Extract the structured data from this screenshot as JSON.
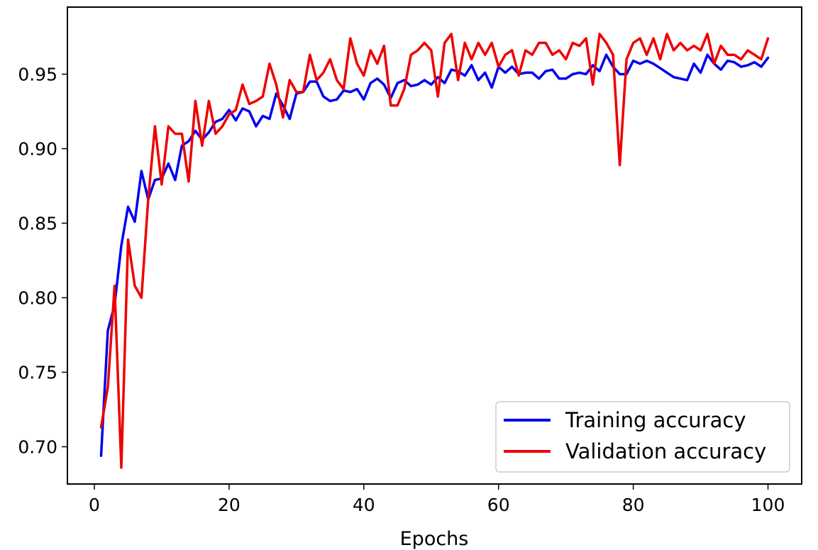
{
  "chart_data": {
    "type": "line",
    "title": "",
    "xlabel": "Epochs",
    "ylabel": "",
    "xlim": [
      -4,
      105
    ],
    "ylim": [
      0.675,
      0.995
    ],
    "xticks": [
      0,
      20,
      40,
      60,
      80,
      100
    ],
    "xtick_labels": [
      "0",
      "20",
      "40",
      "60",
      "80",
      "100"
    ],
    "yticks": [
      0.7,
      0.75,
      0.8,
      0.85,
      0.9,
      0.95
    ],
    "ytick_labels": [
      "0.70",
      "0.75",
      "0.80",
      "0.85",
      "0.90",
      "0.95"
    ],
    "grid": false,
    "legend": "lower-right",
    "x": [
      1,
      2,
      3,
      4,
      5,
      6,
      7,
      8,
      9,
      10,
      11,
      12,
      13,
      14,
      15,
      16,
      17,
      18,
      19,
      20,
      21,
      22,
      23,
      24,
      25,
      26,
      27,
      28,
      29,
      30,
      31,
      32,
      33,
      34,
      35,
      36,
      37,
      38,
      39,
      40,
      41,
      42,
      43,
      44,
      45,
      46,
      47,
      48,
      49,
      50,
      51,
      52,
      53,
      54,
      55,
      56,
      57,
      58,
      59,
      60,
      61,
      62,
      63,
      64,
      65,
      66,
      67,
      68,
      69,
      70,
      71,
      72,
      73,
      74,
      75,
      76,
      77,
      78,
      79,
      80,
      81,
      82,
      83,
      84,
      85,
      86,
      87,
      88,
      89,
      90,
      91,
      92,
      93,
      94,
      95,
      96,
      97,
      98,
      99,
      100
    ],
    "series": [
      {
        "name": "Training accuracy",
        "color": "#0000ee",
        "values": [
          0.694,
          0.778,
          0.795,
          0.835,
          0.861,
          0.851,
          0.885,
          0.866,
          0.879,
          0.88,
          0.89,
          0.879,
          0.902,
          0.905,
          0.912,
          0.906,
          0.911,
          0.918,
          0.92,
          0.926,
          0.919,
          0.927,
          0.925,
          0.915,
          0.922,
          0.92,
          0.937,
          0.929,
          0.92,
          0.937,
          0.938,
          0.945,
          0.945,
          0.935,
          0.932,
          0.933,
          0.939,
          0.938,
          0.94,
          0.933,
          0.944,
          0.947,
          0.943,
          0.934,
          0.944,
          0.946,
          0.942,
          0.943,
          0.946,
          0.943,
          0.948,
          0.944,
          0.953,
          0.952,
          0.949,
          0.956,
          0.946,
          0.951,
          0.941,
          0.955,
          0.951,
          0.955,
          0.95,
          0.951,
          0.951,
          0.947,
          0.952,
          0.953,
          0.947,
          0.947,
          0.95,
          0.951,
          0.95,
          0.956,
          0.952,
          0.963,
          0.955,
          0.95,
          0.95,
          0.959,
          0.957,
          0.959,
          0.957,
          0.954,
          0.951,
          0.948,
          0.947,
          0.946,
          0.957,
          0.951,
          0.963,
          0.957,
          0.953,
          0.959,
          0.958,
          0.955,
          0.956,
          0.958,
          0.955,
          0.961
        ]
      },
      {
        "name": "Validation accuracy",
        "color": "#ee0000",
        "values": [
          0.713,
          0.74,
          0.808,
          0.686,
          0.839,
          0.808,
          0.8,
          0.866,
          0.915,
          0.876,
          0.915,
          0.91,
          0.91,
          0.878,
          0.932,
          0.902,
          0.932,
          0.91,
          0.915,
          0.923,
          0.926,
          0.943,
          0.93,
          0.932,
          0.935,
          0.957,
          0.943,
          0.921,
          0.946,
          0.938,
          0.938,
          0.963,
          0.946,
          0.951,
          0.96,
          0.946,
          0.94,
          0.974,
          0.957,
          0.949,
          0.966,
          0.957,
          0.969,
          0.929,
          0.929,
          0.94,
          0.963,
          0.966,
          0.971,
          0.966,
          0.935,
          0.971,
          0.977,
          0.946,
          0.971,
          0.96,
          0.971,
          0.963,
          0.971,
          0.955,
          0.963,
          0.966,
          0.949,
          0.966,
          0.963,
          0.971,
          0.971,
          0.963,
          0.966,
          0.96,
          0.971,
          0.969,
          0.974,
          0.943,
          0.977,
          0.971,
          0.963,
          0.889,
          0.96,
          0.971,
          0.974,
          0.963,
          0.974,
          0.96,
          0.977,
          0.966,
          0.971,
          0.966,
          0.969,
          0.966,
          0.977,
          0.957,
          0.969,
          0.963,
          0.963,
          0.96,
          0.966,
          0.963,
          0.96,
          0.974
        ]
      }
    ]
  }
}
